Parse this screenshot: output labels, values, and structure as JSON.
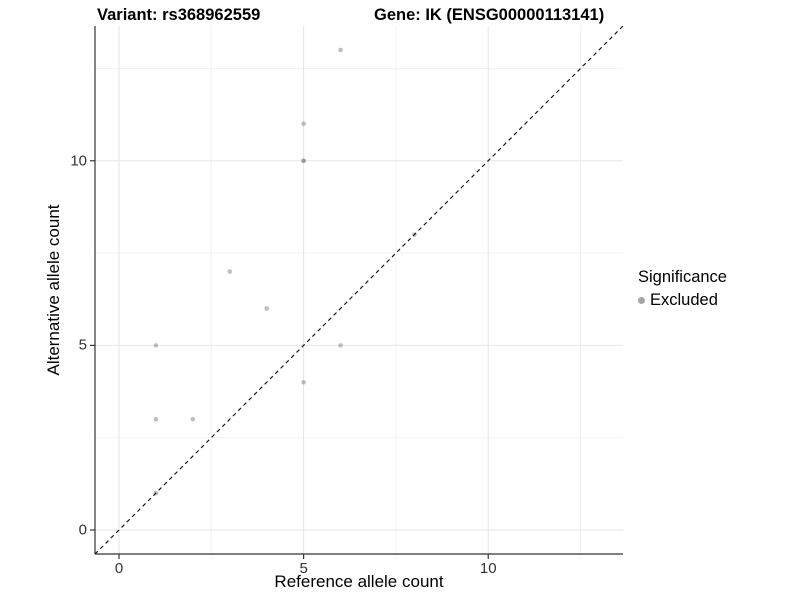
{
  "header": {
    "variant_title": "Variant: rs368962559",
    "gene_title": "Gene: IK (ENSG00000113141)"
  },
  "chart_data": {
    "type": "scatter",
    "title": "Variant: rs368962559 | Gene: IK (ENSG00000113141)",
    "xlabel": "Reference allele count",
    "ylabel": "Alternative allele count",
    "xlim": [
      -0.65,
      13.65
    ],
    "ylim": [
      -0.65,
      13.65
    ],
    "x_ticks": [
      0,
      5,
      10
    ],
    "y_ticks": [
      0,
      5,
      10
    ],
    "x_tick_labels": [
      "0",
      "5",
      "10"
    ],
    "y_tick_labels": [
      "0",
      "5",
      "10"
    ],
    "x_minor_gridlines": [
      2.5,
      7.5,
      12.5
    ],
    "y_minor_gridlines": [
      2.5,
      7.5,
      12.5
    ],
    "grid": true,
    "legend_position": "right",
    "series": [
      {
        "name": "Excluded",
        "color_hex": "#808080",
        "alpha": 0.5,
        "points": [
          [
            1,
            1
          ],
          [
            1,
            3
          ],
          [
            2,
            3
          ],
          [
            1,
            5
          ],
          [
            5,
            4
          ],
          [
            6,
            5
          ],
          [
            4,
            6
          ],
          [
            3,
            7
          ],
          [
            8,
            8
          ],
          [
            5,
            10
          ],
          [
            5,
            10
          ],
          [
            5,
            11
          ],
          [
            6,
            13
          ]
        ]
      }
    ],
    "reference_line": {
      "type": "identity y=x",
      "style": "dashed",
      "color_hex": "#1a1a1a"
    },
    "legend": {
      "title": "Significance",
      "items": [
        {
          "label": "Excluded",
          "color_hex": "#a6a6a6"
        }
      ]
    },
    "style_colors": {
      "grid_major": "#e6e6e6",
      "grid_minor": "#f2f2f2",
      "axis_line": "#333333",
      "panel_background": "#ffffff"
    }
  }
}
